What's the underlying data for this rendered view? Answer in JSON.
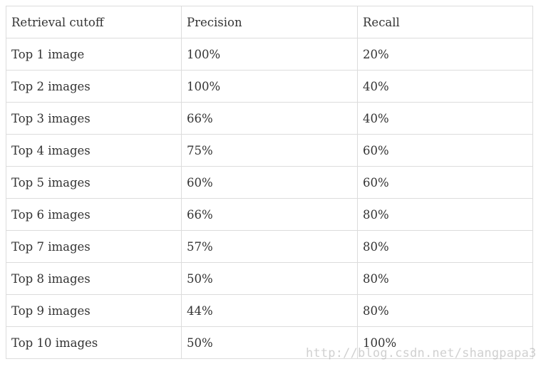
{
  "table": {
    "header": [
      "Retrieval cutoff",
      "Precision",
      "Recall"
    ],
    "rows": [
      [
        "Top 1 image",
        "100%",
        "20%"
      ],
      [
        "Top 2 images",
        "100%",
        "40%"
      ],
      [
        "Top 3 images",
        "66%",
        "40%"
      ],
      [
        "Top 4 images",
        "75%",
        "60%"
      ],
      [
        "Top 5 images",
        "60%",
        "60%"
      ],
      [
        "Top 6 images",
        "66%",
        "80%"
      ],
      [
        "Top 7 images",
        "57%",
        "80%"
      ],
      [
        "Top 8 images",
        "50%",
        "80%"
      ],
      [
        "Top 9 images",
        "44%",
        "80%"
      ],
      [
        "Top 10 images",
        "50%",
        "100%"
      ]
    ]
  },
  "watermark": "http://blog.csdn.net/shangpapa3"
}
